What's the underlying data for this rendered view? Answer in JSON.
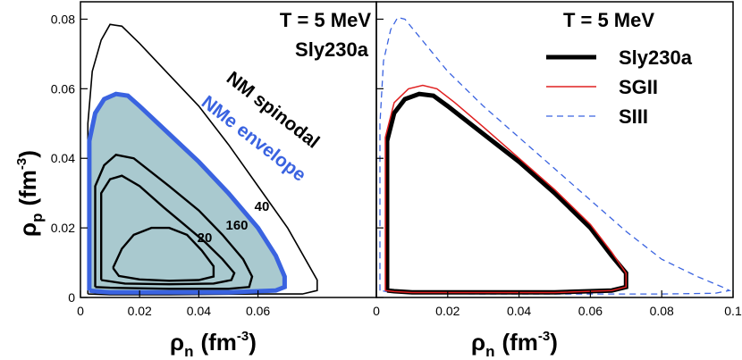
{
  "chart_data": [
    {
      "type": "line",
      "panel": "left",
      "xlim": [
        0,
        0.1
      ],
      "ylim": [
        0,
        0.085
      ],
      "x_ticks": [
        0,
        0.02,
        0.04,
        0.06
      ],
      "x_tick_labels": [
        "0",
        "0.02",
        "0.04",
        "0.06"
      ],
      "y_ticks": [
        0,
        0.02,
        0.04,
        0.06,
        0.08
      ],
      "y_tick_labels": [
        "0",
        "0.02",
        "0.04",
        "0.06",
        "0.08"
      ],
      "xlabel": {
        "base": "ρ",
        "sub": "n",
        "unit": "(fm",
        "exp": "-3",
        "close": ")"
      },
      "ylabel": {
        "base": "ρ",
        "sub": "p",
        "unit": "(fm",
        "exp": "-3",
        "close": ")"
      },
      "title_lines": [
        "T = 5 MeV",
        "Sly230a"
      ],
      "annotations": [
        "NM spinodal",
        "NMe envelope"
      ],
      "contour_labels": [
        "20",
        "160",
        "40"
      ],
      "colors": {
        "spinodal": "#000000",
        "envelope": "#3a63e0",
        "envelope_fill": "#a9c9cf",
        "contour": "#000000"
      },
      "series": [
        {
          "name": "NM spinodal",
          "points": [
            [
              0.0025,
              0.001
            ],
            [
              0.0025,
              0.05
            ],
            [
              0.004,
              0.065
            ],
            [
              0.007,
              0.074
            ],
            [
              0.01,
              0.0785
            ],
            [
              0.014,
              0.078
            ],
            [
              0.02,
              0.073
            ],
            [
              0.03,
              0.064
            ],
            [
              0.04,
              0.055
            ],
            [
              0.05,
              0.044
            ],
            [
              0.06,
              0.032
            ],
            [
              0.07,
              0.02
            ],
            [
              0.076,
              0.011
            ],
            [
              0.08,
              0.005
            ],
            [
              0.08,
              0.002
            ],
            [
              0.075,
              0.001
            ],
            [
              0.06,
              0.001
            ],
            [
              0.03,
              0.0008
            ],
            [
              0.01,
              0.0008
            ],
            [
              0.0025,
              0.001
            ]
          ]
        },
        {
          "name": "NMe envelope",
          "points": [
            [
              0.003,
              0.002
            ],
            [
              0.003,
              0.045
            ],
            [
              0.005,
              0.053
            ],
            [
              0.008,
              0.057
            ],
            [
              0.012,
              0.0585
            ],
            [
              0.016,
              0.058
            ],
            [
              0.02,
              0.055
            ],
            [
              0.03,
              0.047
            ],
            [
              0.04,
              0.039
            ],
            [
              0.05,
              0.03
            ],
            [
              0.06,
              0.02
            ],
            [
              0.066,
              0.012
            ],
            [
              0.069,
              0.006
            ],
            [
              0.069,
              0.003
            ],
            [
              0.066,
              0.002
            ],
            [
              0.05,
              0.0015
            ],
            [
              0.03,
              0.0015
            ],
            [
              0.01,
              0.0015
            ],
            [
              0.005,
              0.0018
            ],
            [
              0.003,
              0.002
            ]
          ]
        },
        {
          "name": "contour 40",
          "points": [
            [
              0.005,
              0.003
            ],
            [
              0.005,
              0.032
            ],
            [
              0.008,
              0.038
            ],
            [
              0.012,
              0.041
            ],
            [
              0.018,
              0.04
            ],
            [
              0.03,
              0.032
            ],
            [
              0.04,
              0.025
            ],
            [
              0.048,
              0.018
            ],
            [
              0.055,
              0.011
            ],
            [
              0.058,
              0.006
            ],
            [
              0.057,
              0.003
            ],
            [
              0.05,
              0.0025
            ],
            [
              0.03,
              0.0025
            ],
            [
              0.01,
              0.0028
            ],
            [
              0.005,
              0.003
            ]
          ]
        },
        {
          "name": "contour 160",
          "points": [
            [
              0.007,
              0.005
            ],
            [
              0.007,
              0.03
            ],
            [
              0.01,
              0.034
            ],
            [
              0.014,
              0.035
            ],
            [
              0.02,
              0.032
            ],
            [
              0.028,
              0.026
            ],
            [
              0.035,
              0.021
            ],
            [
              0.042,
              0.016
            ],
            [
              0.048,
              0.011
            ],
            [
              0.052,
              0.007
            ],
            [
              0.051,
              0.005
            ],
            [
              0.045,
              0.004
            ],
            [
              0.03,
              0.0038
            ],
            [
              0.015,
              0.004
            ],
            [
              0.007,
              0.005
            ]
          ]
        },
        {
          "name": "contour 20",
          "points": [
            [
              0.011,
              0.0085
            ],
            [
              0.014,
              0.014
            ],
            [
              0.018,
              0.018
            ],
            [
              0.024,
              0.02
            ],
            [
              0.03,
              0.02
            ],
            [
              0.036,
              0.018
            ],
            [
              0.041,
              0.0135
            ],
            [
              0.045,
              0.009
            ],
            [
              0.045,
              0.006
            ],
            [
              0.04,
              0.005
            ],
            [
              0.03,
              0.0048
            ],
            [
              0.02,
              0.0052
            ],
            [
              0.013,
              0.0062
            ],
            [
              0.011,
              0.0085
            ]
          ]
        }
      ]
    },
    {
      "type": "line",
      "panel": "right",
      "xlim": [
        0,
        0.1
      ],
      "ylim": [
        0,
        0.085
      ],
      "x_ticks": [
        0,
        0.02,
        0.04,
        0.06,
        0.08,
        0.1
      ],
      "x_tick_labels": [
        "0",
        "0.02",
        "0.04",
        "0.06",
        "0.08",
        "0.1"
      ],
      "xlabel": {
        "base": "ρ",
        "sub": "n",
        "unit": "(fm",
        "exp": "-3",
        "close": ")"
      },
      "title_lines": [
        "T = 5 MeV"
      ],
      "colors": {
        "Sly230a": "#000000",
        "SGII": "#e02020",
        "SIII": "#3a63e0"
      },
      "series": [
        {
          "name": "Sly230a",
          "style": "solid-thick",
          "points": [
            [
              0.003,
              0.002
            ],
            [
              0.003,
              0.045
            ],
            [
              0.005,
              0.053
            ],
            [
              0.008,
              0.057
            ],
            [
              0.012,
              0.0585
            ],
            [
              0.016,
              0.058
            ],
            [
              0.02,
              0.055
            ],
            [
              0.03,
              0.047
            ],
            [
              0.04,
              0.039
            ],
            [
              0.05,
              0.03
            ],
            [
              0.06,
              0.02
            ],
            [
              0.066,
              0.012
            ],
            [
              0.07,
              0.007
            ],
            [
              0.07,
              0.003
            ],
            [
              0.066,
              0.002
            ],
            [
              0.05,
              0.0015
            ],
            [
              0.03,
              0.0015
            ],
            [
              0.01,
              0.0015
            ],
            [
              0.005,
              0.0018
            ],
            [
              0.003,
              0.002
            ]
          ]
        },
        {
          "name": "SGII",
          "style": "solid-thin",
          "points": [
            [
              0.0025,
              0.002
            ],
            [
              0.0025,
              0.046
            ],
            [
              0.005,
              0.056
            ],
            [
              0.009,
              0.06
            ],
            [
              0.013,
              0.061
            ],
            [
              0.017,
              0.06
            ],
            [
              0.022,
              0.056
            ],
            [
              0.03,
              0.049
            ],
            [
              0.04,
              0.04
            ],
            [
              0.05,
              0.031
            ],
            [
              0.06,
              0.021
            ],
            [
              0.066,
              0.013
            ],
            [
              0.07,
              0.007
            ],
            [
              0.07,
              0.003
            ],
            [
              0.066,
              0.002
            ],
            [
              0.05,
              0.0014
            ],
            [
              0.03,
              0.0014
            ],
            [
              0.01,
              0.0014
            ],
            [
              0.005,
              0.0017
            ],
            [
              0.0025,
              0.002
            ]
          ]
        },
        {
          "name": "SIII",
          "style": "dashed",
          "points": [
            [
              0.001,
              0.002
            ],
            [
              0.001,
              0.05
            ],
            [
              0.002,
              0.068
            ],
            [
              0.004,
              0.077
            ],
            [
              0.006,
              0.0805
            ],
            [
              0.008,
              0.08
            ],
            [
              0.012,
              0.075
            ],
            [
              0.02,
              0.065
            ],
            [
              0.03,
              0.055
            ],
            [
              0.04,
              0.046
            ],
            [
              0.05,
              0.037
            ],
            [
              0.06,
              0.028
            ],
            [
              0.07,
              0.019
            ],
            [
              0.08,
              0.011
            ],
            [
              0.09,
              0.006
            ],
            [
              0.097,
              0.003
            ],
            [
              0.099,
              0.002
            ],
            [
              0.095,
              0.0012
            ],
            [
              0.08,
              0.001
            ],
            [
              0.06,
              0.001
            ],
            [
              0.03,
              0.001
            ],
            [
              0.01,
              0.0012
            ],
            [
              0.004,
              0.0015
            ],
            [
              0.001,
              0.002
            ]
          ]
        }
      ]
    }
  ]
}
